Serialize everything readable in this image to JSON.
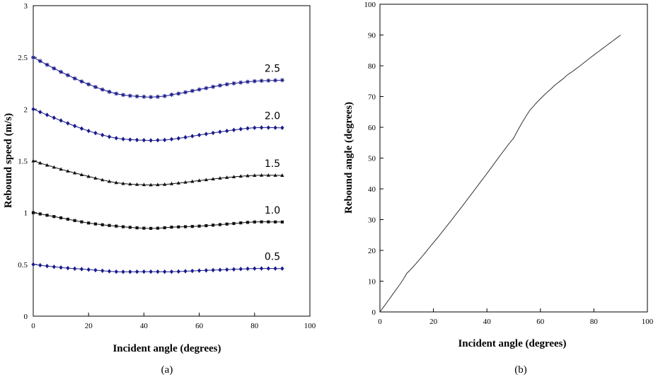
{
  "chart_data": [
    {
      "type": "line",
      "panel_label": "(a)",
      "xlabel": "Incident angle (degrees)",
      "ylabel": "Rebound speed (m/s)",
      "xlim": [
        0,
        100
      ],
      "ylim": [
        0,
        3
      ],
      "xticks": [
        "0",
        "20",
        "40",
        "60",
        "80",
        "100"
      ],
      "yticks": [
        "0",
        "0.5",
        "1",
        "1.5",
        "2",
        "2.5",
        "3"
      ],
      "grid": false,
      "x": [
        0,
        10,
        20,
        30,
        40,
        45,
        50,
        60,
        70,
        80,
        90
      ],
      "series": [
        {
          "label": "2.5",
          "marker": "star",
          "color": "#1a1a8c",
          "values": [
            2.5,
            2.36,
            2.24,
            2.15,
            2.12,
            2.12,
            2.14,
            2.19,
            2.24,
            2.27,
            2.28
          ]
        },
        {
          "label": "2.0",
          "marker": "diamond",
          "color": "#1a1a8c",
          "values": [
            2.0,
            1.89,
            1.79,
            1.72,
            1.7,
            1.7,
            1.71,
            1.75,
            1.79,
            1.82,
            1.82
          ]
        },
        {
          "label": "1.5",
          "marker": "triangle",
          "color": "#111111",
          "values": [
            1.5,
            1.42,
            1.35,
            1.29,
            1.27,
            1.27,
            1.28,
            1.31,
            1.34,
            1.36,
            1.36
          ]
        },
        {
          "label": "1.0",
          "marker": "square",
          "color": "#111111",
          "values": [
            1.0,
            0.95,
            0.9,
            0.87,
            0.85,
            0.85,
            0.86,
            0.87,
            0.89,
            0.91,
            0.91
          ]
        },
        {
          "label": "0.5",
          "marker": "diamond",
          "color": "#1a1a8c",
          "values": [
            0.5,
            0.47,
            0.45,
            0.43,
            0.43,
            0.43,
            0.43,
            0.44,
            0.45,
            0.46,
            0.46
          ]
        }
      ]
    },
    {
      "type": "line",
      "panel_label": "(b)",
      "xlabel": "Incident angle (degrees)",
      "ylabel": "Rebound angle (degrees)",
      "xlim": [
        0,
        100
      ],
      "ylim": [
        0,
        100
      ],
      "xticks": [
        "0",
        "20",
        "40",
        "60",
        "80",
        "100"
      ],
      "yticks": [
        "0",
        "10",
        "20",
        "30",
        "40",
        "50",
        "60",
        "70",
        "80",
        "90",
        "100"
      ],
      "grid": false,
      "series": [
        {
          "x": [
            0,
            5,
            10,
            20,
            30,
            40,
            50,
            56,
            64,
            70,
            80,
            90
          ],
          "values": [
            0,
            6,
            12.5,
            22.5,
            33.5,
            45,
            56.5,
            65.5,
            72.5,
            77,
            83.5,
            90
          ]
        }
      ]
    }
  ]
}
